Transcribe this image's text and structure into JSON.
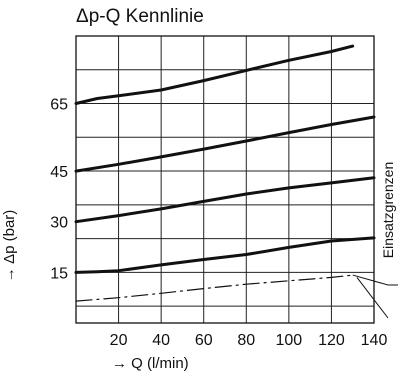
{
  "chart_data": {
    "type": "line",
    "title": "Δp-Q Kennlinie",
    "xlabel": "→ Q (l/min)",
    "ylabel": "→ Δp (bar)",
    "xlim": [
      0,
      140
    ],
    "ylim": [
      0,
      85
    ],
    "x_ticks": [
      20,
      40,
      60,
      80,
      100,
      120,
      140
    ],
    "y_ticks": [
      15,
      30,
      45,
      65
    ],
    "grid": true,
    "annotation": "Einsatzgrenzen",
    "series": [
      {
        "style": "solid",
        "points": [
          [
            0,
            15
          ],
          [
            10,
            15.2
          ],
          [
            20,
            15.5
          ],
          [
            40,
            17.2
          ],
          [
            60,
            18.8
          ],
          [
            80,
            20.3
          ],
          [
            100,
            22.4
          ],
          [
            120,
            24.3
          ],
          [
            140,
            25.2
          ]
        ]
      },
      {
        "style": "solid",
        "points": [
          [
            0,
            30
          ],
          [
            20,
            31.8
          ],
          [
            40,
            33.8
          ],
          [
            60,
            36
          ],
          [
            80,
            38.2
          ],
          [
            100,
            40
          ],
          [
            120,
            41.5
          ],
          [
            140,
            43
          ]
        ]
      },
      {
        "style": "solid",
        "points": [
          [
            0,
            45
          ],
          [
            20,
            47
          ],
          [
            40,
            49.2
          ],
          [
            60,
            51.5
          ],
          [
            80,
            53.9
          ],
          [
            100,
            56.4
          ],
          [
            120,
            58.8
          ],
          [
            140,
            61
          ]
        ]
      },
      {
        "style": "solid",
        "points": [
          [
            0,
            65
          ],
          [
            10,
            66.5
          ],
          [
            20,
            67.3
          ],
          [
            40,
            69
          ],
          [
            60,
            71.8
          ],
          [
            80,
            74.8
          ],
          [
            100,
            77.8
          ],
          [
            120,
            80.4
          ],
          [
            130,
            82
          ]
        ]
      },
      {
        "style": "dashdot",
        "points": [
          [
            0,
            6.5
          ],
          [
            20,
            7.5
          ],
          [
            40,
            8.8
          ],
          [
            60,
            10.2
          ],
          [
            80,
            11.5
          ],
          [
            100,
            12.5
          ],
          [
            120,
            13.5
          ],
          [
            130,
            14.2
          ]
        ]
      }
    ]
  }
}
